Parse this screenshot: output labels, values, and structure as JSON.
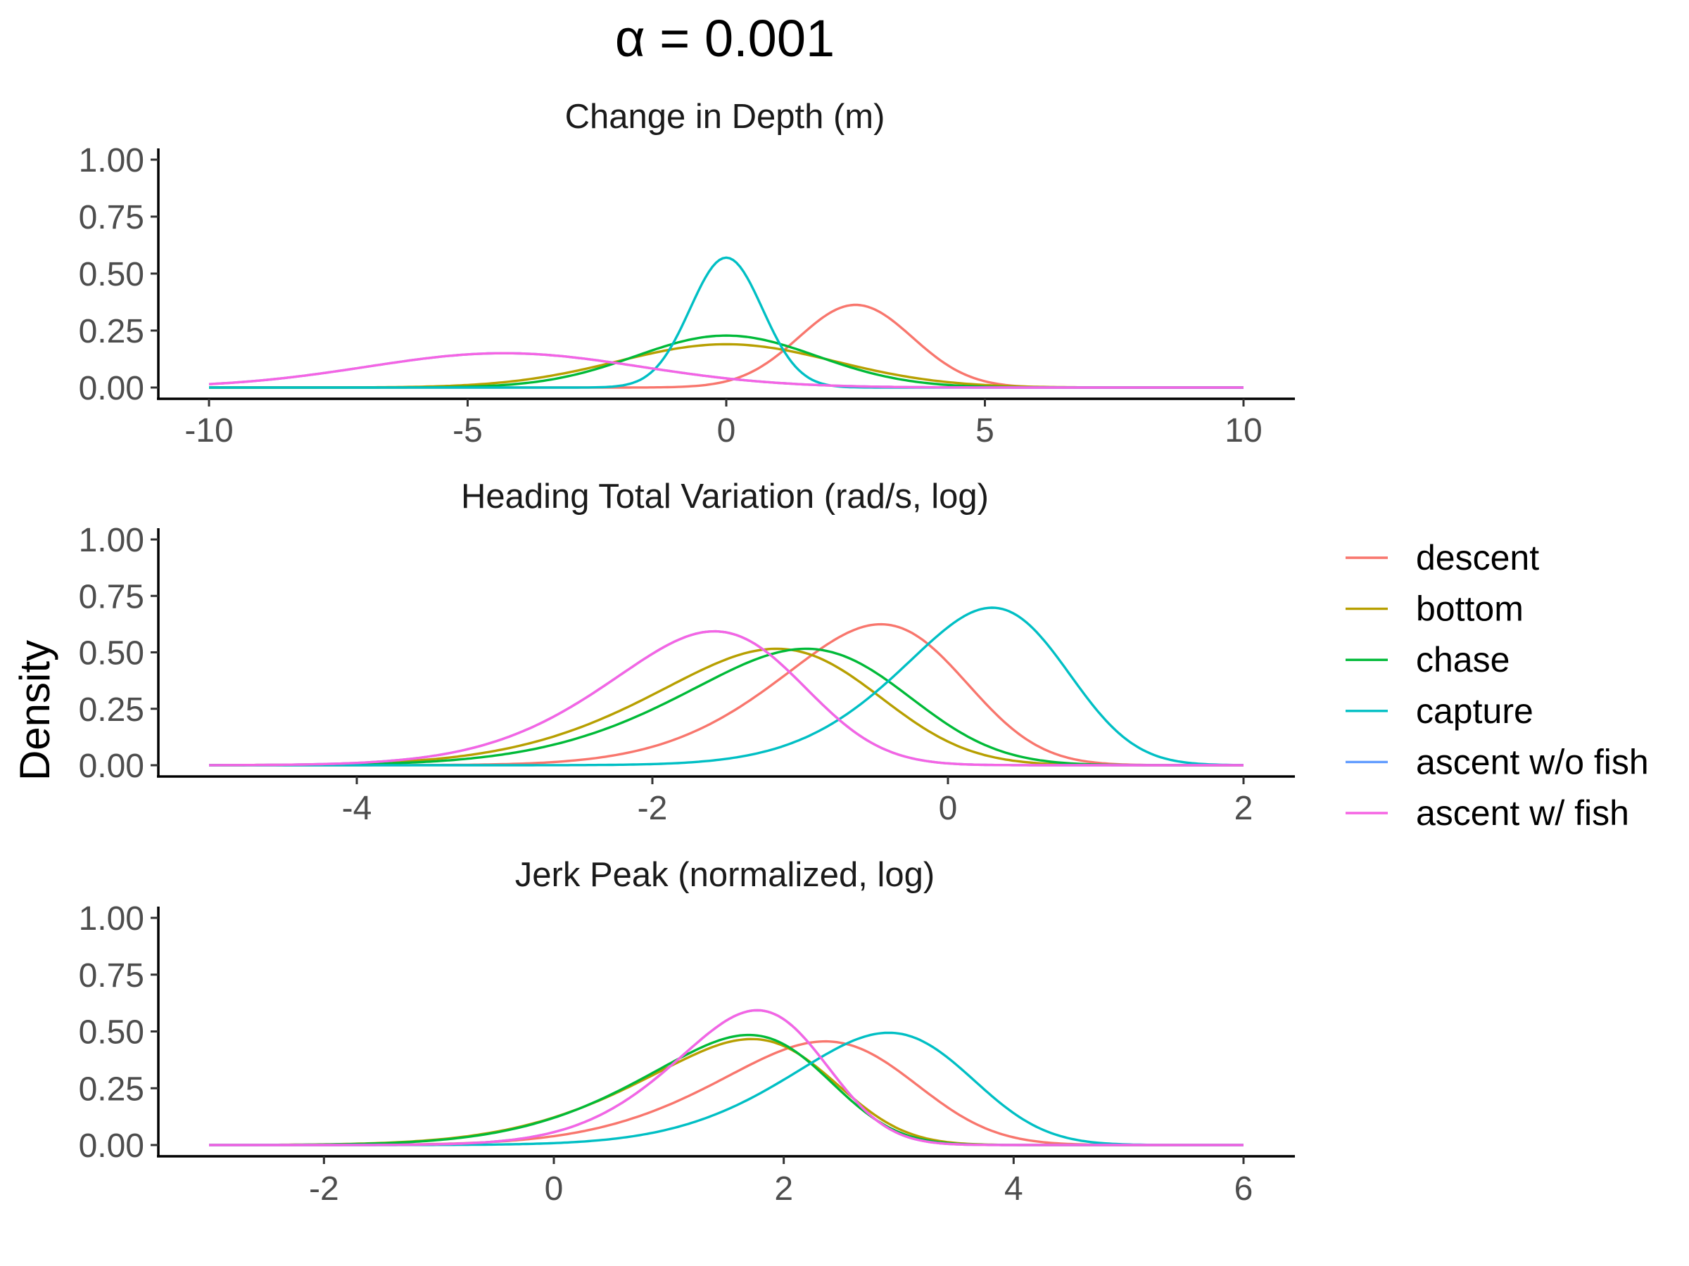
{
  "title": "α = 0.001",
  "ylabel": "Density",
  "legend": [
    {
      "name": "descent",
      "color": "#F8766D"
    },
    {
      "name": "bottom",
      "color": "#B79F00"
    },
    {
      "name": "chase",
      "color": "#00BA38"
    },
    {
      "name": "capture",
      "color": "#00BFC4"
    },
    {
      "name": "ascent w/o fish",
      "color": "#619CFF"
    },
    {
      "name": "ascent w/ fish",
      "color": "#F564E3"
    }
  ],
  "chart_data": [
    {
      "type": "line",
      "title": "Change in Depth (m)",
      "xlim": [
        -10,
        10
      ],
      "ylim": [
        0,
        1
      ],
      "xticks": [
        -10,
        -5,
        0,
        5,
        10
      ],
      "xtick_labels": [
        "-10",
        "-5",
        "0",
        "5",
        "10"
      ],
      "yticks": [
        0,
        0.25,
        0.5,
        0.75,
        1
      ],
      "ytick_labels": [
        "0.00",
        "0.25",
        "0.50",
        "0.75",
        "1.00"
      ],
      "series": [
        {
          "name": "descent",
          "dist": "normal",
          "mean": 2.5,
          "sd": 1.1
        },
        {
          "name": "bottom",
          "dist": "normal",
          "mean": 0.0,
          "sd": 2.1
        },
        {
          "name": "chase",
          "dist": "normal",
          "mean": 0.0,
          "sd": 1.75
        },
        {
          "name": "capture",
          "dist": "normal",
          "mean": 0.0,
          "sd": 0.7
        },
        {
          "name": "ascent w/o fish",
          "dist": "normal",
          "mean": -4.3,
          "sd": 2.65
        },
        {
          "name": "ascent w/ fish",
          "dist": "normal",
          "mean": -4.3,
          "sd": 2.65
        }
      ]
    },
    {
      "type": "line",
      "title": "Heading Total Variation (rad/s, log)",
      "xlim": [
        -5,
        2
      ],
      "ylim": [
        0,
        1
      ],
      "xticks": [
        -4,
        -2,
        0,
        2
      ],
      "xtick_labels": [
        "-4",
        "-2",
        "0",
        "2"
      ],
      "yticks": [
        0,
        0.25,
        0.5,
        0.75,
        1
      ],
      "ytick_labels": [
        "0.00",
        "0.25",
        "0.50",
        "0.75",
        "1.00"
      ],
      "series": [
        {
          "name": "descent",
          "dist": "skewnormal",
          "loc": 0.05,
          "scale": 0.95,
          "shape": -2.0
        },
        {
          "name": "bottom",
          "dist": "skewnormal",
          "loc": -0.55,
          "scale": 1.15,
          "shape": -2.0
        },
        {
          "name": "chase",
          "dist": "skewnormal",
          "loc": -0.35,
          "scale": 1.15,
          "shape": -2.0
        },
        {
          "name": "capture",
          "dist": "skewnormal",
          "loc": 0.75,
          "scale": 0.85,
          "shape": -2.0
        },
        {
          "name": "ascent w/o fish",
          "dist": "skewnormal",
          "loc": -1.05,
          "scale": 1.0,
          "shape": -2.0
        },
        {
          "name": "ascent w/ fish",
          "dist": "skewnormal",
          "loc": -1.05,
          "scale": 1.0,
          "shape": -2.0
        }
      ]
    },
    {
      "type": "line",
      "title": "Jerk Peak (normalized, log)",
      "xlim": [
        -3,
        6
      ],
      "ylim": [
        0,
        1
      ],
      "xticks": [
        -2,
        0,
        2,
        4,
        6
      ],
      "xtick_labels": [
        "-2",
        "0",
        "2",
        "4",
        "6"
      ],
      "yticks": [
        0,
        0.25,
        0.5,
        0.75,
        1
      ],
      "ytick_labels": [
        "0.00",
        "0.25",
        "0.50",
        "0.75",
        "1.00"
      ],
      "series": [
        {
          "name": "descent",
          "dist": "skewnormal",
          "loc": 3.05,
          "scale": 1.3,
          "shape": -2.0
        },
        {
          "name": "bottom",
          "dist": "skewnormal",
          "loc": 2.4,
          "scale": 1.35,
          "shape": -2.5
        },
        {
          "name": "chase",
          "dist": "skewnormal",
          "loc": 2.35,
          "scale": 1.3,
          "shape": -2.5
        },
        {
          "name": "capture",
          "dist": "skewnormal",
          "loc": 3.55,
          "scale": 1.2,
          "shape": -2.0
        },
        {
          "name": "ascent w/o fish",
          "dist": "skewnormal",
          "loc": 2.3,
          "scale": 1.0,
          "shape": -2.0
        },
        {
          "name": "ascent w/ fish",
          "dist": "skewnormal",
          "loc": 2.3,
          "scale": 1.0,
          "shape": -2.0
        }
      ]
    }
  ]
}
